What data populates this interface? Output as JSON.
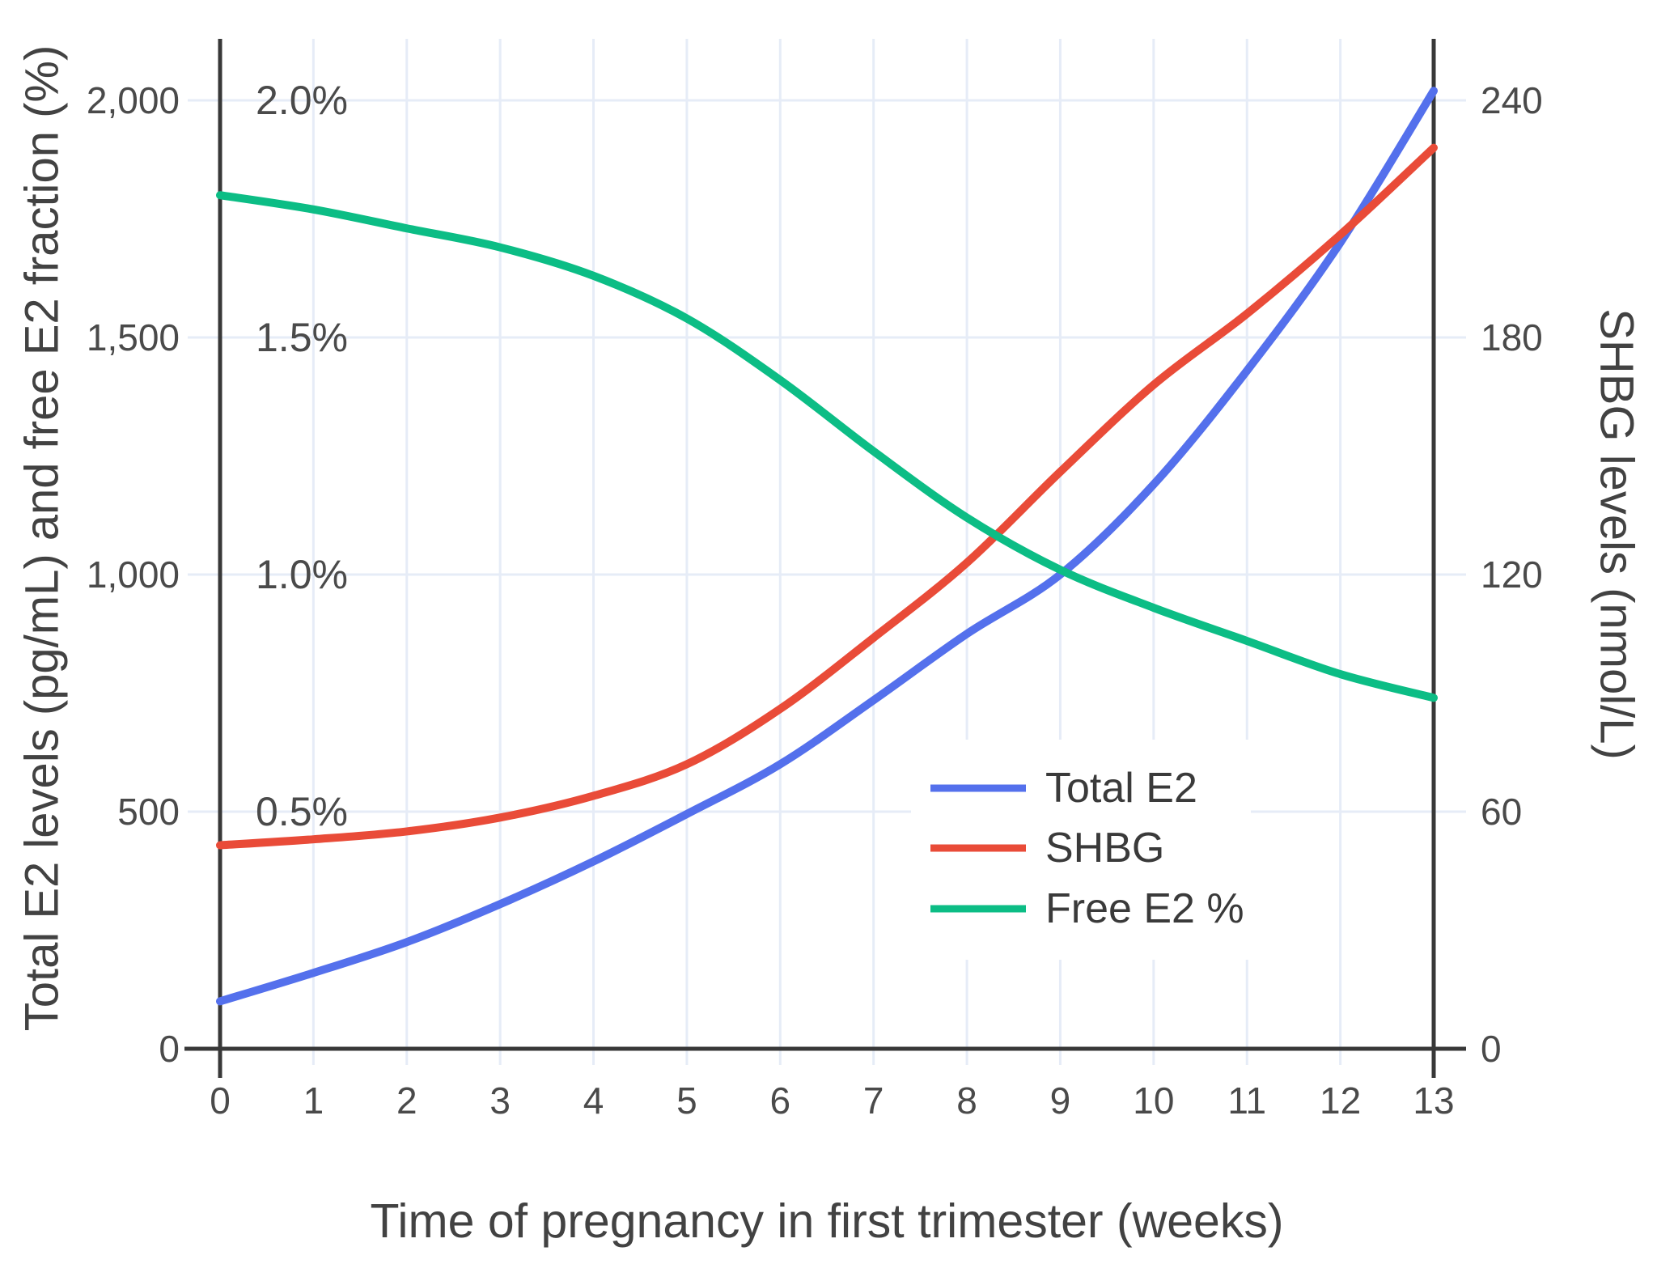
{
  "page": {
    "background": "#FFFFFF"
  },
  "chart_data": {
    "type": "line",
    "title": "",
    "xlabel": "Time of pregnancy in first trimester (weeks)",
    "ylabel_left": "Total E2 levels (pg/mL) and free E2 fraction (%)",
    "ylabel_right": "SHBG levels (nmol/L)",
    "x": [
      0,
      1,
      2,
      3,
      4,
      5,
      6,
      7,
      8,
      9,
      10,
      11,
      12,
      13
    ],
    "x_tick_labels": [
      "0",
      "1",
      "2",
      "3",
      "4",
      "5",
      "6",
      "7",
      "8",
      "9",
      "10",
      "11",
      "12",
      "13"
    ],
    "series": [
      {
        "name": "Total E2",
        "color": "#5470EC",
        "axis": "left_pg",
        "unit": "pg/mL",
        "values": [
          100,
          160,
          225,
          305,
          395,
          495,
          600,
          735,
          875,
          1000,
          1190,
          1430,
          1700,
          2020
        ]
      },
      {
        "name": "SHBG",
        "color": "#E94B38",
        "axis": "right_nmol",
        "unit": "nmol/L",
        "values": [
          51.5,
          53,
          55,
          58.5,
          64,
          72,
          86,
          104,
          123,
          146,
          168,
          186,
          206,
          228
        ]
      },
      {
        "name": "Free E2 %",
        "color": "#0CBD85",
        "axis": "left_pct",
        "unit": "%",
        "values": [
          1.8,
          1.77,
          1.73,
          1.69,
          1.63,
          1.54,
          1.41,
          1.26,
          1.12,
          1.01,
          0.93,
          0.86,
          0.79,
          0.74
        ]
      }
    ],
    "axes": {
      "x": {
        "min": 0,
        "max": 13
      },
      "left_pg": {
        "min": 0,
        "max": 2000,
        "ticks": [
          0,
          500,
          1000,
          1500,
          2000
        ],
        "tick_labels": [
          "0",
          "500",
          "1,000",
          "1,500",
          "2,000"
        ]
      },
      "left_pct": {
        "min": 0,
        "max": 2.0,
        "ticks": [
          0.5,
          1.0,
          1.5,
          2.0
        ],
        "tick_labels": [
          "0.5%",
          "1.0%",
          "1.5%",
          "2.0%"
        ]
      },
      "right_nmol": {
        "min": 0,
        "max": 240,
        "ticks": [
          0,
          60,
          120,
          180,
          240
        ],
        "tick_labels": [
          "0",
          "60",
          "120",
          "180",
          "240"
        ]
      }
    },
    "legend": {
      "position": "inside-right",
      "entries": [
        "Total E2",
        "SHBG",
        "Free E2 %"
      ]
    },
    "grid": true,
    "colors": {
      "grid": "#E6ECF7",
      "axis": "#383838",
      "tick_text": "#4A4A4A",
      "title_text": "#424242",
      "legend_text": "#3A3A3A",
      "background": "#FFFFFF"
    }
  }
}
